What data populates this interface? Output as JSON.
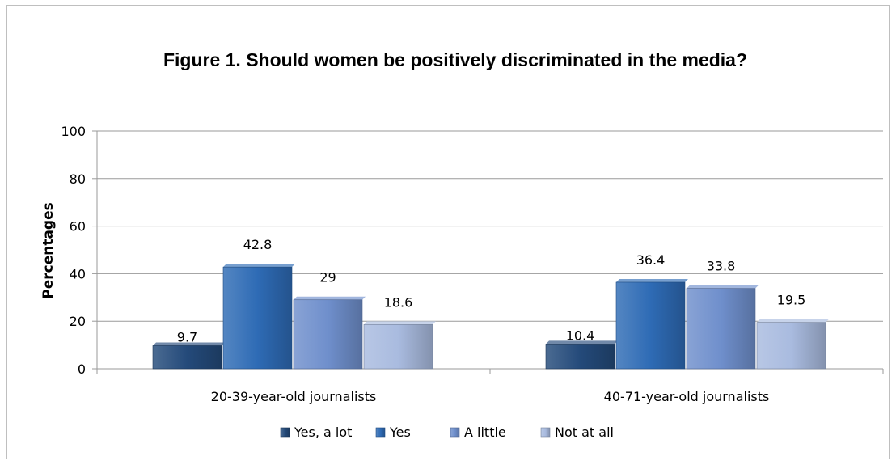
{
  "chart_data": {
    "type": "bar",
    "title": "Figure 1. Should women be positively discriminated in the media?",
    "ylabel": "Percentages",
    "xlabel": "",
    "ylim": [
      0,
      100
    ],
    "yticks": [
      0,
      20,
      40,
      60,
      80,
      100
    ],
    "grid": true,
    "legend_position": "bottom",
    "categories": [
      "20-39-year-old journalists",
      "40-71-year-old journalists"
    ],
    "series": [
      {
        "name": "Yes, a lot",
        "values": [
          9.7,
          10.4
        ],
        "value_labels": [
          "9.7",
          "10.4"
        ],
        "color": "#244a7a"
      },
      {
        "name": "Yes",
        "values": [
          42.8,
          36.4
        ],
        "value_labels": [
          "42.8",
          "36.4"
        ],
        "color": "#2e6bb5"
      },
      {
        "name": "A little",
        "values": [
          29,
          33.8
        ],
        "value_labels": [
          "29",
          "33.8"
        ],
        "color": "#6f8fcc"
      },
      {
        "name": "Not at all",
        "values": [
          18.6,
          19.5
        ],
        "value_labels": [
          "18.6",
          "19.5"
        ],
        "color": "#a9bbdf"
      }
    ]
  }
}
